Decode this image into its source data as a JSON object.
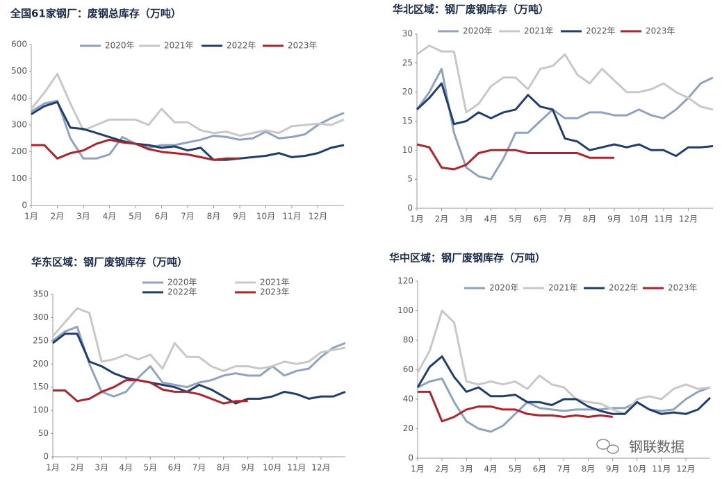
{
  "chart_data": [
    {
      "type": "line",
      "title": "全国61家钢厂：废钢总库存（万吨）",
      "x": [
        1,
        1.5,
        2,
        2.5,
        3,
        3.5,
        4,
        4.5,
        5,
        5.5,
        6,
        6.5,
        7,
        7.5,
        8,
        8.5,
        9,
        9.5,
        10,
        10.5,
        11,
        11.5,
        12,
        12.5,
        13
      ],
      "xlim": [
        1,
        13
      ],
      "xticks": [
        {
          "value": 1,
          "label": "1月"
        },
        {
          "value": 2,
          "label": "2月"
        },
        {
          "value": 3,
          "label": "3月"
        },
        {
          "value": 4,
          "label": "4月"
        },
        {
          "value": 5,
          "label": "5月"
        },
        {
          "value": 6,
          "label": "6月"
        },
        {
          "value": 7,
          "label": "7月"
        },
        {
          "value": 8,
          "label": "8月"
        },
        {
          "value": 9,
          "label": "9月"
        },
        {
          "value": 10,
          "label": "10月"
        },
        {
          "value": 11,
          "label": "11月"
        },
        {
          "value": 12,
          "label": "12月"
        }
      ],
      "ylim": [
        0,
        600
      ],
      "yticks": [
        0,
        100,
        200,
        300,
        400,
        500,
        600
      ],
      "series": [
        {
          "name": "2020年",
          "color": "#8ea3c0",
          "values": [
            350,
            380,
            390,
            250,
            175,
            175,
            190,
            255,
            230,
            215,
            225,
            225,
            235,
            245,
            260,
            255,
            245,
            250,
            275,
            250,
            255,
            265,
            300,
            325,
            345
          ]
        },
        {
          "name": "2021年",
          "color": "#c8c8c8",
          "values": [
            360,
            420,
            490,
            380,
            280,
            300,
            320,
            320,
            320,
            300,
            360,
            310,
            310,
            280,
            270,
            275,
            260,
            270,
            280,
            270,
            295,
            300,
            305,
            300,
            320
          ]
        },
        {
          "name": "2022年",
          "color": "#1f3d6e",
          "values": [
            340,
            370,
            385,
            290,
            285,
            270,
            255,
            240,
            230,
            225,
            215,
            220,
            205,
            215,
            170,
            170,
            175,
            180,
            185,
            195,
            180,
            185,
            195,
            215,
            225
          ]
        },
        {
          "name": "2023年",
          "color": "#b3222a",
          "values": [
            225,
            225,
            175,
            195,
            205,
            230,
            245,
            235,
            230,
            210,
            200,
            195,
            190,
            180,
            170,
            175,
            175,
            null,
            null,
            null,
            null,
            null,
            null,
            null,
            null
          ]
        }
      ]
    },
    {
      "type": "line",
      "title": "华北区域：钢厂废钢库存（万吨）",
      "x": [
        1,
        1.5,
        2,
        2.5,
        3,
        3.5,
        4,
        4.5,
        5,
        5.5,
        6,
        6.5,
        7,
        7.5,
        8,
        8.5,
        9,
        9.5,
        10,
        10.5,
        11,
        11.5,
        12,
        12.5,
        13
      ],
      "xlim": [
        1,
        13
      ],
      "xticks": [
        {
          "value": 1,
          "label": "1月"
        },
        {
          "value": 2,
          "label": "2月"
        },
        {
          "value": 3,
          "label": "3月"
        },
        {
          "value": 4,
          "label": "4月"
        },
        {
          "value": 5,
          "label": "5月"
        },
        {
          "value": 6,
          "label": "6月"
        },
        {
          "value": 7,
          "label": "7月"
        },
        {
          "value": 8,
          "label": "8月"
        },
        {
          "value": 9,
          "label": "9月"
        },
        {
          "value": 10,
          "label": "10月"
        },
        {
          "value": 11,
          "label": "11月"
        },
        {
          "value": 12,
          "label": "12月"
        }
      ],
      "ylim": [
        0,
        30
      ],
      "yticks": [
        0,
        5,
        10,
        15,
        20,
        25,
        30
      ],
      "series": [
        {
          "name": "2020年",
          "color": "#8ea3c0",
          "values": [
            17,
            20,
            24,
            13,
            7,
            5.5,
            5,
            8.5,
            13,
            13,
            15,
            17,
            15.5,
            15.5,
            16.5,
            16.5,
            16,
            16,
            17,
            16,
            15.5,
            17,
            19,
            21.5,
            22.5
          ]
        },
        {
          "name": "2021年",
          "color": "#c8c8c8",
          "values": [
            26.5,
            28,
            27,
            27,
            16.5,
            18,
            21,
            22.5,
            22.5,
            20.5,
            24,
            24.5,
            26.5,
            23,
            21.5,
            24,
            22,
            20,
            20,
            20.5,
            21.5,
            20,
            19,
            17.5,
            17
          ]
        },
        {
          "name": "2022年",
          "color": "#1f3d6e",
          "values": [
            17,
            19,
            21.5,
            14.5,
            15,
            16.5,
            15.5,
            16.5,
            17,
            19.5,
            17.5,
            17,
            12,
            11.5,
            10,
            10.5,
            11,
            10.5,
            11,
            10,
            10,
            9,
            10.5,
            10.5,
            10.7
          ]
        },
        {
          "name": "2023年",
          "color": "#b3222a",
          "values": [
            11,
            10.5,
            7,
            6.7,
            7.5,
            9.5,
            10,
            10,
            10,
            9.5,
            9.5,
            9.5,
            9.5,
            9.5,
            8.7,
            8.7,
            8.7,
            null,
            null,
            null,
            null,
            null,
            null,
            null,
            null
          ]
        }
      ]
    },
    {
      "type": "line",
      "title": "华东区域：钢厂废钢库存（万吨）",
      "x": [
        1,
        1.5,
        2,
        2.5,
        3,
        3.5,
        4,
        4.5,
        5,
        5.5,
        6,
        6.5,
        7,
        7.5,
        8,
        8.5,
        9,
        9.5,
        10,
        10.5,
        11,
        11.5,
        12,
        12.5,
        13
      ],
      "xlim": [
        1,
        13
      ],
      "xticks": [
        {
          "value": 1,
          "label": "1月"
        },
        {
          "value": 2,
          "label": "2月"
        },
        {
          "value": 3,
          "label": "3月"
        },
        {
          "value": 4,
          "label": "4月"
        },
        {
          "value": 5,
          "label": "5月"
        },
        {
          "value": 6,
          "label": "6月"
        },
        {
          "value": 7,
          "label": "7月"
        },
        {
          "value": 8,
          "label": "8月"
        },
        {
          "value": 9,
          "label": "9月"
        },
        {
          "value": 10,
          "label": "10月"
        },
        {
          "value": 11,
          "label": "11月"
        },
        {
          "value": 12,
          "label": "12月"
        }
      ],
      "ylim": [
        0,
        350
      ],
      "yticks": [
        0,
        50,
        100,
        150,
        200,
        250,
        300,
        350
      ],
      "series": [
        {
          "name": "2020年",
          "color": "#8ea3c0",
          "values": [
            250,
            270,
            280,
            200,
            140,
            130,
            140,
            170,
            195,
            160,
            155,
            150,
            160,
            165,
            175,
            180,
            175,
            175,
            195,
            175,
            185,
            190,
            215,
            235,
            245
          ]
        },
        {
          "name": "2021年",
          "color": "#c8c8c8",
          "values": [
            260,
            290,
            320,
            310,
            205,
            210,
            220,
            210,
            220,
            190,
            245,
            215,
            215,
            195,
            185,
            195,
            195,
            190,
            195,
            205,
            200,
            205,
            225,
            230,
            235
          ]
        },
        {
          "name": "2022年",
          "color": "#1f3d6e",
          "values": [
            245,
            265,
            265,
            205,
            195,
            180,
            170,
            165,
            160,
            155,
            150,
            140,
            155,
            145,
            130,
            115,
            125,
            125,
            130,
            140,
            135,
            125,
            130,
            130,
            140
          ]
        },
        {
          "name": "2023年",
          "color": "#b3222a",
          "values": [
            143,
            143,
            120,
            125,
            140,
            150,
            165,
            165,
            160,
            145,
            140,
            140,
            135,
            125,
            115,
            120,
            120,
            null,
            null,
            null,
            null,
            null,
            null,
            null,
            null
          ]
        }
      ]
    },
    {
      "type": "line",
      "title": "华中区域：钢厂废钢库存（万吨）",
      "x": [
        1,
        1.5,
        2,
        2.5,
        3,
        3.5,
        4,
        4.5,
        5,
        5.5,
        6,
        6.5,
        7,
        7.5,
        8,
        8.5,
        9,
        9.5,
        10,
        10.5,
        11,
        11.5,
        12,
        12.5,
        13
      ],
      "xlim": [
        1,
        13
      ],
      "xticks": [
        {
          "value": 1,
          "label": "1月"
        },
        {
          "value": 2,
          "label": "2月"
        },
        {
          "value": 3,
          "label": "3月"
        },
        {
          "value": 4,
          "label": "4月"
        },
        {
          "value": 5,
          "label": "5月"
        },
        {
          "value": 6,
          "label": "6月"
        },
        {
          "value": 7,
          "label": "7月"
        },
        {
          "value": 8,
          "label": "8月"
        },
        {
          "value": 9,
          "label": "9月"
        },
        {
          "value": 10,
          "label": "10月"
        },
        {
          "value": 11,
          "label": "11月"
        },
        {
          "value": 12,
          "label": "12月"
        }
      ],
      "ylim": [
        0,
        120
      ],
      "yticks": [
        0,
        20,
        40,
        60,
        80,
        100,
        120
      ],
      "series": [
        {
          "name": "2020年",
          "color": "#8ea3c0",
          "values": [
            48,
            52,
            54,
            38,
            25,
            20,
            18,
            22,
            30,
            38,
            34,
            33,
            32,
            33,
            33,
            33,
            34,
            34,
            38,
            33,
            32,
            33,
            40,
            45,
            48
          ]
        },
        {
          "name": "2021年",
          "color": "#c8c8c8",
          "values": [
            58,
            73,
            100,
            92,
            52,
            50,
            52,
            50,
            52,
            47,
            56,
            50,
            48,
            40,
            38,
            37,
            33,
            30,
            40,
            42,
            40,
            47,
            50,
            47,
            48
          ]
        },
        {
          "name": "2022年",
          "color": "#1f3d6e",
          "values": [
            48,
            62,
            69,
            55,
            45,
            48,
            42,
            42,
            43,
            38,
            38,
            36,
            40,
            40,
            35,
            32,
            30,
            30,
            38,
            33,
            30,
            31,
            30,
            33,
            41
          ]
        },
        {
          "name": "2023年",
          "color": "#b3222a",
          "values": [
            45,
            45,
            25,
            28,
            33,
            35,
            35,
            33,
            33,
            30,
            29,
            29,
            28,
            29,
            28,
            29,
            28,
            null,
            null,
            null,
            null,
            null,
            null,
            null,
            null
          ]
        }
      ]
    }
  ],
  "watermark": "钢联数据"
}
